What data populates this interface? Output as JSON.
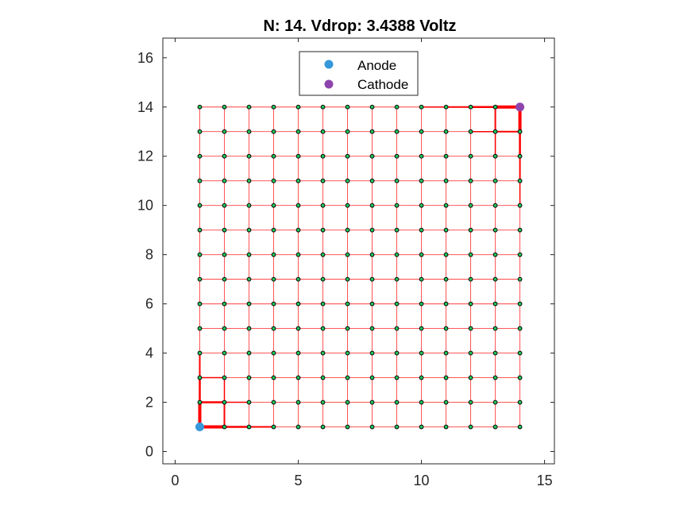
{
  "chart_data": {
    "type": "scatter",
    "title": "N: 14. Vdrop: 3.4388 Voltz",
    "xlabel": "",
    "ylabel": "",
    "xlim": [
      -0.5,
      15.4
    ],
    "ylim": [
      -0.5,
      16.8
    ],
    "xticks": [
      0,
      5,
      10,
      15
    ],
    "xtick_labels": [
      "0",
      "5",
      "10",
      "15"
    ],
    "yticks": [
      0,
      2,
      4,
      6,
      8,
      10,
      12,
      14,
      16
    ],
    "ytick_labels": [
      "0",
      "2",
      "4",
      "6",
      "8",
      "10",
      "12",
      "14",
      "16"
    ],
    "grid": false,
    "legend_position": "top-center",
    "grid_nodes": {
      "x_range": [
        1,
        14
      ],
      "y_range": [
        1,
        14
      ],
      "node_color": "#22c55e",
      "node_edge": "#000000",
      "edge_color": "#ff0000"
    },
    "series": [
      {
        "name": "Anode",
        "points": [
          [
            1,
            1
          ]
        ],
        "color": "#3498db"
      },
      {
        "name": "Cathode",
        "points": [
          [
            14,
            14
          ]
        ],
        "color": "#8e44ad"
      }
    ]
  }
}
